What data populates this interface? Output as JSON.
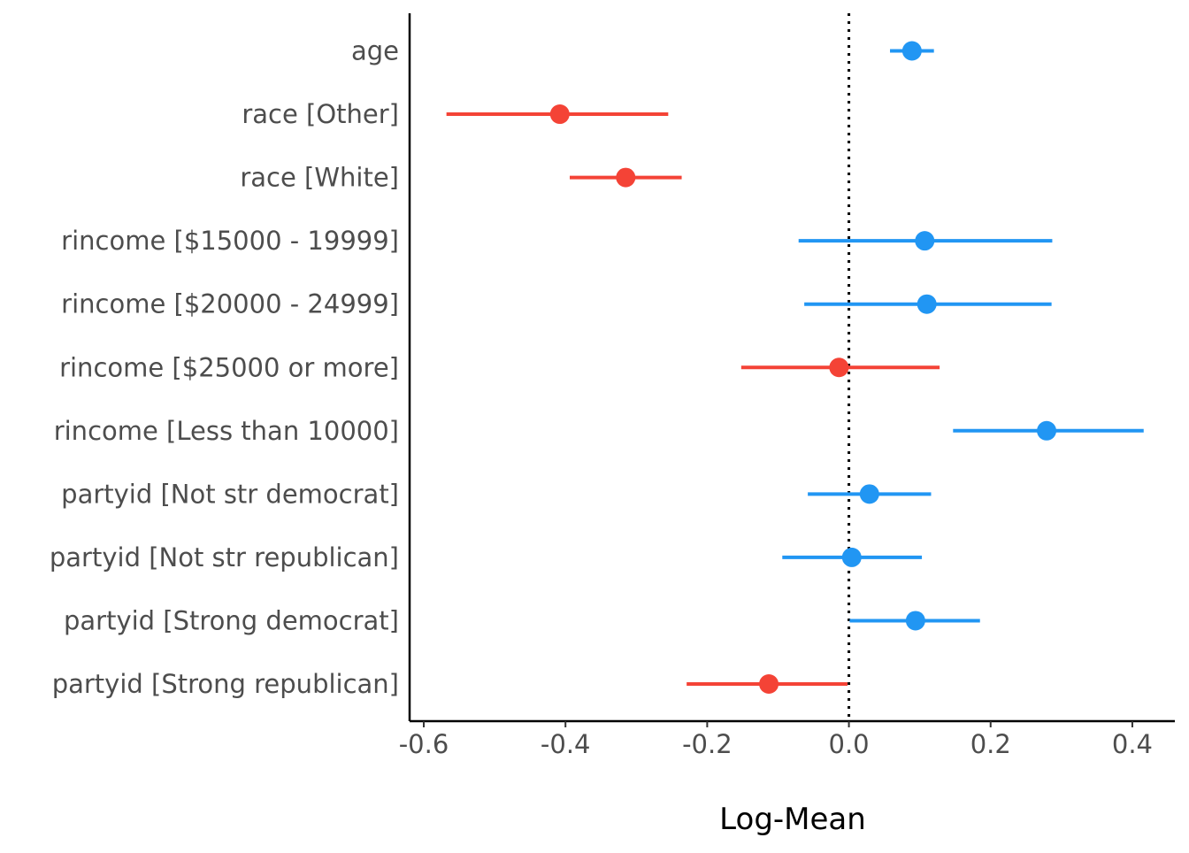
{
  "chart_data": {
    "type": "forest",
    "xlabel": "Log-Mean",
    "xlim": [
      -0.62,
      0.46
    ],
    "x_ticks": [
      -0.6,
      -0.4,
      -0.2,
      0.0,
      0.2,
      0.4
    ],
    "x_tick_labels": [
      "-0.6",
      "-0.4",
      "-0.2",
      "0.0",
      "0.2",
      "0.4"
    ],
    "reference_line": 0.0,
    "reference_line_style": "dotted",
    "grid": false,
    "colors": {
      "positive": "#2196f3",
      "negative": "#f44336",
      "axis": "#000000",
      "label": "#4d4d4d"
    },
    "terms": [
      {
        "label": "age",
        "estimate": 0.089,
        "low": 0.058,
        "high": 0.12
      },
      {
        "label": "race [Other]",
        "estimate": -0.408,
        "low": -0.568,
        "high": -0.255
      },
      {
        "label": "race [White]",
        "estimate": -0.315,
        "low": -0.394,
        "high": -0.236
      },
      {
        "label": "rincome [$15000 - 19999]",
        "estimate": 0.107,
        "low": -0.071,
        "high": 0.287
      },
      {
        "label": "rincome [$20000 - 24999]",
        "estimate": 0.11,
        "low": -0.063,
        "high": 0.286
      },
      {
        "label": "rincome [$25000 or more]",
        "estimate": -0.014,
        "low": -0.152,
        "high": 0.128
      },
      {
        "label": "rincome [Less than 10000]",
        "estimate": 0.279,
        "low": 0.147,
        "high": 0.416
      },
      {
        "label": "partyid [Not str democrat]",
        "estimate": 0.029,
        "low": -0.058,
        "high": 0.116
      },
      {
        "label": "partyid [Not str republican]",
        "estimate": 0.004,
        "low": -0.094,
        "high": 0.103
      },
      {
        "label": "partyid [Strong democrat]",
        "estimate": 0.094,
        "low": 0.001,
        "high": 0.185
      },
      {
        "label": "partyid [Strong republican]",
        "estimate": -0.113,
        "low": -0.229,
        "high": -0.002
      }
    ]
  }
}
